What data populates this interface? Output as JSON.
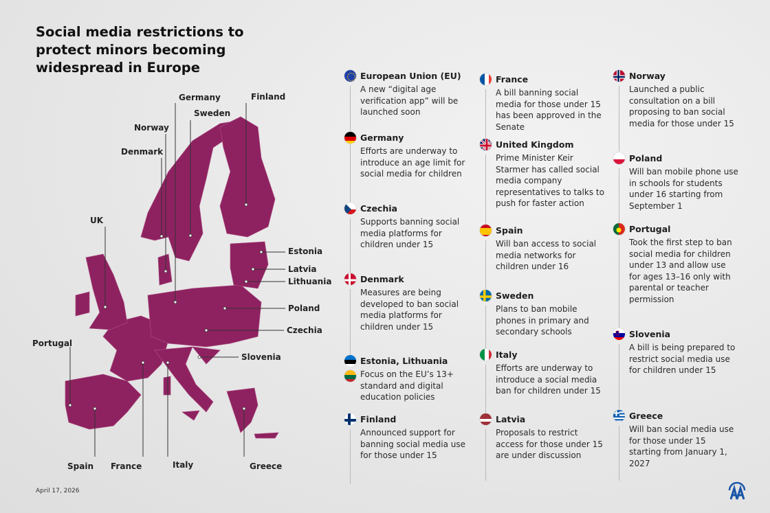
{
  "title": "Social media restrictions to protect minors becoming widespread in Europe",
  "date": "April 17, 2026",
  "map_color": "#8e2260",
  "map_labels": {
    "germany": "Germany",
    "finland": "Finland",
    "sweden": "Sweden",
    "norway": "Norway",
    "denmark": "Denmark",
    "uk": "UK",
    "estonia": "Estonia",
    "latvia": "Latvia",
    "lithuania": "Lithuania",
    "poland": "Poland",
    "czechia": "Czechia",
    "slovenia": "Slovenia",
    "portugal": "Portugal",
    "spain": "Spain",
    "france": "France",
    "italy": "Italy",
    "greece": "Greece"
  },
  "entries": [
    {
      "name": "European Union (EU)",
      "text": "A new “digital age verification app” will be launched soon"
    },
    {
      "name": "Germany",
      "text": "Efforts are underway to introduce an age limit for social media for children"
    },
    {
      "name": "Czechia",
      "text": "Supports banning social media platforms for children under 15"
    },
    {
      "name": "Denmark",
      "text": "Measures are being developed to ban social media platforms for children under 15"
    },
    {
      "name": "Estonia, Lithuania",
      "text": "Focus on the EU’s 13+ standard and digital education policies"
    },
    {
      "name": "Finland",
      "text": "Announced support for banning social media use for those under 15"
    },
    {
      "name": "France",
      "text": "A bill banning social media for those under 15 has been approved in the Senate"
    },
    {
      "name": "United Kingdom",
      "text": "Prime Minister Keir Starmer has called social media company representatives to talks to push for faster action"
    },
    {
      "name": "Spain",
      "text": "Will ban access to social media networks for children under 16"
    },
    {
      "name": "Sweden",
      "text": "Plans to ban mobile phones in primary and secondary schools"
    },
    {
      "name": "Italy",
      "text": "Efforts are underway to introduce a social media ban for children under 15"
    },
    {
      "name": "Latvia",
      "text": "Proposals to restrict access for those under 15 are under discussion"
    },
    {
      "name": "Norway",
      "text": "Launched a public consultation on a bill proposing to ban social media for those under 15"
    },
    {
      "name": "Poland",
      "text": "Will ban mobile phone use in schools for students under 16 starting from September 1"
    },
    {
      "name": "Portugal",
      "text": "Took the first step to ban social media for children under 13 and allow use for ages 13–16 only with parental or teacher permission"
    },
    {
      "name": "Slovenia",
      "text": "A bill is being prepared to restrict social media use for children under 15"
    },
    {
      "name": "Greece",
      "text": "Will ban social media use for those under 15 starting from January 1, 2027"
    }
  ],
  "logo_text": "AA"
}
